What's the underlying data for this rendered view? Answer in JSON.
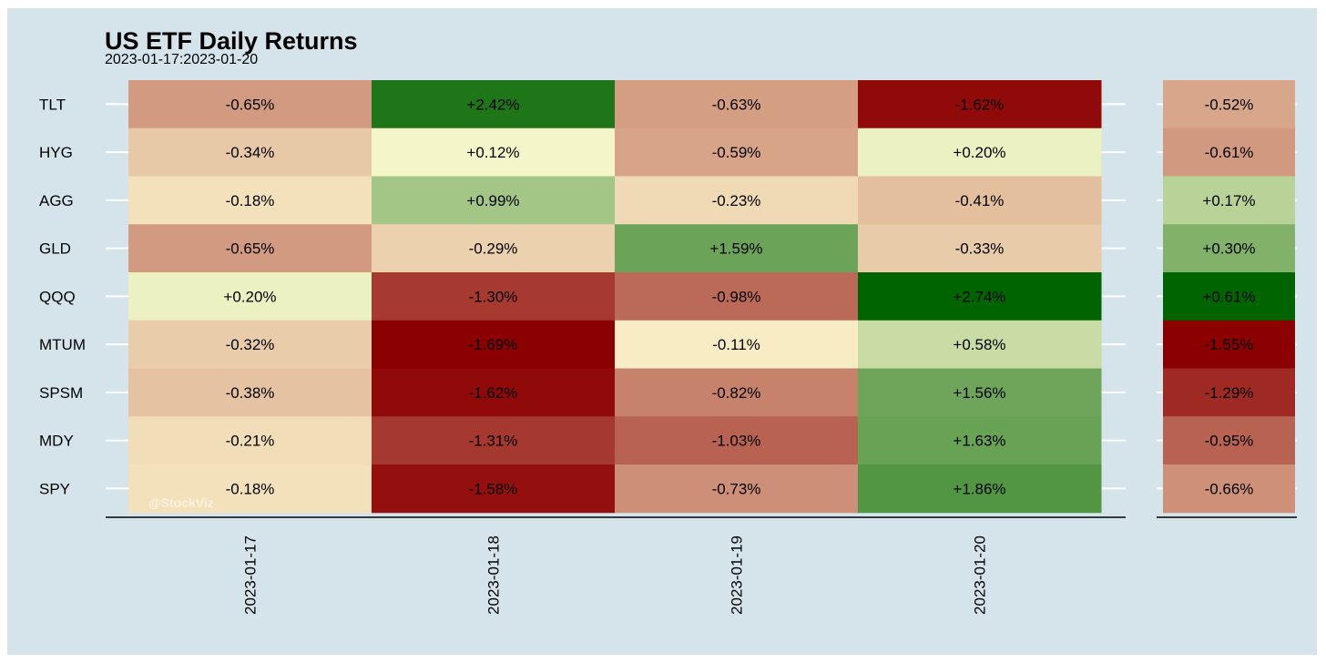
{
  "chart_data": {
    "type": "heatmap",
    "title": "US ETF Daily Returns",
    "subtitle": "2023-01-17:2023-01-20",
    "watermark": "@StockViz",
    "rows": [
      "TLT",
      "HYG",
      "AGG",
      "GLD",
      "QQQ",
      "MTUM",
      "SPSM",
      "MDY",
      "SPY"
    ],
    "columns": [
      "2023-01-17",
      "2023-01-18",
      "2023-01-19",
      "2023-01-20"
    ],
    "values": [
      [
        -0.65,
        2.42,
        -0.63,
        -1.62
      ],
      [
        -0.34,
        0.12,
        -0.59,
        0.2
      ],
      [
        -0.18,
        0.99,
        -0.23,
        -0.41
      ],
      [
        -0.65,
        -0.29,
        1.59,
        -0.33
      ],
      [
        0.2,
        -1.3,
        -0.98,
        2.74
      ],
      [
        -0.32,
        -1.69,
        -0.11,
        0.58
      ],
      [
        -0.38,
        -1.62,
        -0.82,
        1.56
      ],
      [
        -0.21,
        -1.31,
        -1.03,
        1.63
      ],
      [
        -0.18,
        -1.58,
        -0.73,
        1.86
      ]
    ],
    "labels": [
      [
        "-0.65%",
        "+2.42%",
        "-0.63%",
        "-1.62%"
      ],
      [
        "-0.34%",
        "+0.12%",
        "-0.59%",
        "+0.20%"
      ],
      [
        "-0.18%",
        "+0.99%",
        "-0.23%",
        "-0.41%"
      ],
      [
        "-0.65%",
        "-0.29%",
        "+1.59%",
        "-0.33%"
      ],
      [
        "+0.20%",
        "-1.30%",
        "-0.98%",
        "+2.74%"
      ],
      [
        "-0.32%",
        "-1.69%",
        "-0.11%",
        "+0.58%"
      ],
      [
        "-0.38%",
        "-1.62%",
        "-0.82%",
        "+1.56%"
      ],
      [
        "-0.21%",
        "-1.31%",
        "-1.03%",
        "+1.63%"
      ],
      [
        "-0.18%",
        "-1.58%",
        "-0.73%",
        "+1.86%"
      ]
    ],
    "summary_values": [
      -0.52,
      -0.61,
      0.17,
      0.3,
      0.61,
      -1.55,
      -1.29,
      -0.95,
      -0.66
    ],
    "summary_labels": [
      "-0.52%",
      "-0.61%",
      "+0.17%",
      "+0.30%",
      "+0.61%",
      "-1.55%",
      "-1.29%",
      "-0.95%",
      "-0.66%"
    ],
    "colors": {
      "negative": "#8b0000",
      "neutral": "#fffcd1",
      "positive": "#006400",
      "background": "#d5e4eb",
      "gridline": "#ffffff"
    }
  }
}
